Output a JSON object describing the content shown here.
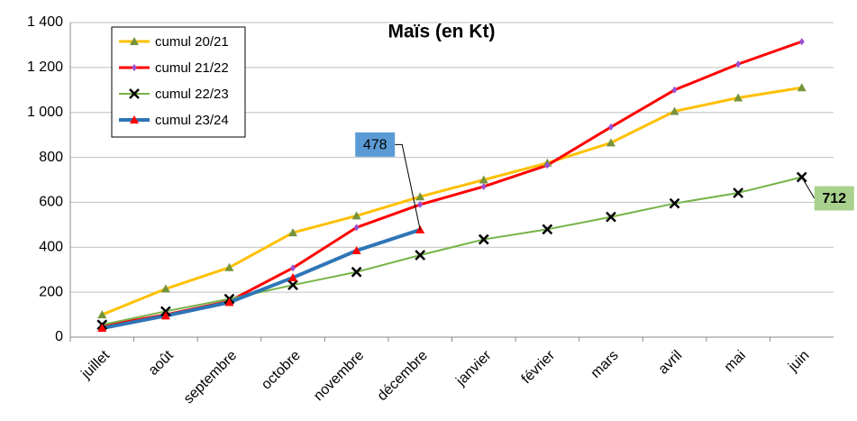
{
  "chart_data": {
    "type": "line",
    "title": "Maïs (en Kt)",
    "categories": [
      "juillet",
      "août",
      "septembre",
      "octobre",
      "novembre",
      "décembre",
      "janvier",
      "février",
      "mars",
      "avril",
      "mai",
      "juin"
    ],
    "ylim": [
      0,
      1400
    ],
    "yticks": [
      0,
      200,
      400,
      600,
      800,
      {
        "value": 1000,
        "label": "1 000"
      },
      {
        "value": 1200,
        "label": "1 200"
      },
      {
        "value": 1400,
        "label": "1 400"
      }
    ],
    "grid": true,
    "legend": "top-left",
    "series": [
      {
        "name": "cumul 20/21",
        "color": "#ffc000",
        "marker": "triangle",
        "marker_color": "#77933c",
        "line_width": 3,
        "values": [
          100,
          215,
          310,
          465,
          540,
          625,
          700,
          775,
          865,
          1005,
          1065,
          1110
        ]
      },
      {
        "name": "cumul 21/22",
        "color": "#ff0000",
        "marker": "diamond",
        "marker_color": "#9b4fd0",
        "line_width": 3,
        "values": [
          50,
          100,
          160,
          308,
          488,
          590,
          670,
          765,
          935,
          1100,
          1215,
          1315
        ]
      },
      {
        "name": "cumul 22/23",
        "color": "#77b347",
        "marker": "x",
        "marker_color": "#000000",
        "line_width": 2,
        "label_last": true,
        "label_color": "#a9d18e",
        "values": [
          55,
          115,
          170,
          232,
          290,
          365,
          435,
          480,
          535,
          595,
          642,
          712
        ]
      },
      {
        "name": "cumul 23/24",
        "color": "#2e75b6",
        "marker": "triangle",
        "marker_color": "#ff0000",
        "line_width": 4,
        "label_last": true,
        "label_color": "#5b9bd5",
        "values": [
          40,
          95,
          155,
          265,
          385,
          478,
          null,
          null,
          null,
          null,
          null,
          null
        ]
      }
    ]
  }
}
